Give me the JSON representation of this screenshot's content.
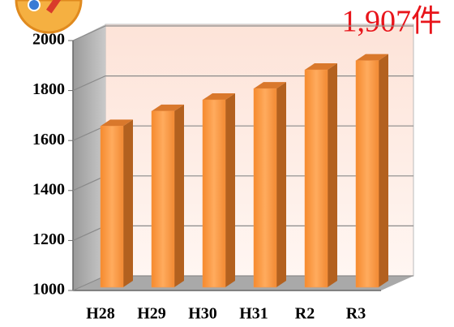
{
  "chart_data": {
    "type": "bar",
    "annotation": "1,907件",
    "categories": [
      "H28",
      "H29",
      "H30",
      "H31",
      "R2",
      "R3"
    ],
    "values": [
      1645,
      1705,
      1750,
      1795,
      1870,
      1907
    ],
    "color": "#f79646",
    "ylim": [
      1000,
      2000
    ],
    "yticks": [
      1000,
      1200,
      1400,
      1600,
      1800,
      2000
    ],
    "grid": true
  }
}
